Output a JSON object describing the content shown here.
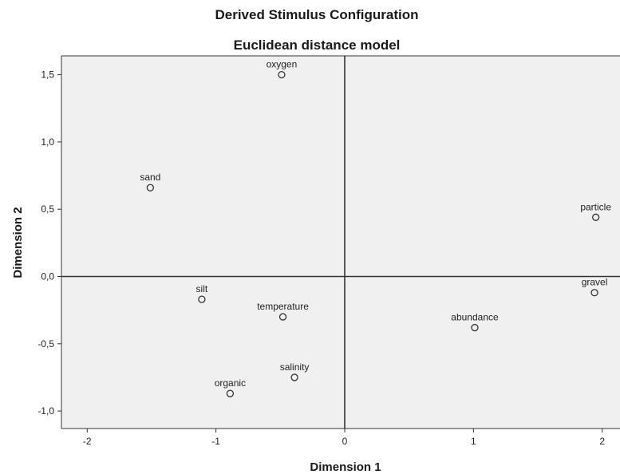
{
  "chart_data": {
    "type": "scatter",
    "title": "Derived Stimulus Configuration",
    "subtitle": "Euclidean distance model",
    "xlabel": "Dimension 1",
    "ylabel": "Dimension 2",
    "xlim": [
      -2.2,
      2.2
    ],
    "ylim": [
      -1.13,
      1.64
    ],
    "xticks": [
      -2,
      -1,
      0,
      1,
      2
    ],
    "xtick_labels": [
      "-2",
      "-1",
      "0",
      "1",
      "2"
    ],
    "yticks": [
      -1.0,
      -0.5,
      0.0,
      0.5,
      1.0,
      1.5
    ],
    "ytick_labels": [
      "-1,0",
      "-0,5",
      "0,0",
      "0,5",
      "1,0",
      "1,5"
    ],
    "reference_lines": {
      "x": 0,
      "y": 0
    },
    "grid": false,
    "plot_background": "#f0f0f0",
    "marker": "open-circle",
    "points": [
      {
        "label": "oxygen",
        "x": -0.49,
        "y": 1.5
      },
      {
        "label": "sand",
        "x": -1.51,
        "y": 0.66
      },
      {
        "label": "particle",
        "x": 1.95,
        "y": 0.44
      },
      {
        "label": "silt",
        "x": -1.11,
        "y": -0.17
      },
      {
        "label": "temperature",
        "x": -0.48,
        "y": -0.3
      },
      {
        "label": "gravel",
        "x": 1.94,
        "y": -0.12
      },
      {
        "label": "abundance",
        "x": 1.01,
        "y": -0.38
      },
      {
        "label": "salinity",
        "x": -0.39,
        "y": -0.75
      },
      {
        "label": "organic",
        "x": -0.89,
        "y": -0.87
      }
    ]
  }
}
